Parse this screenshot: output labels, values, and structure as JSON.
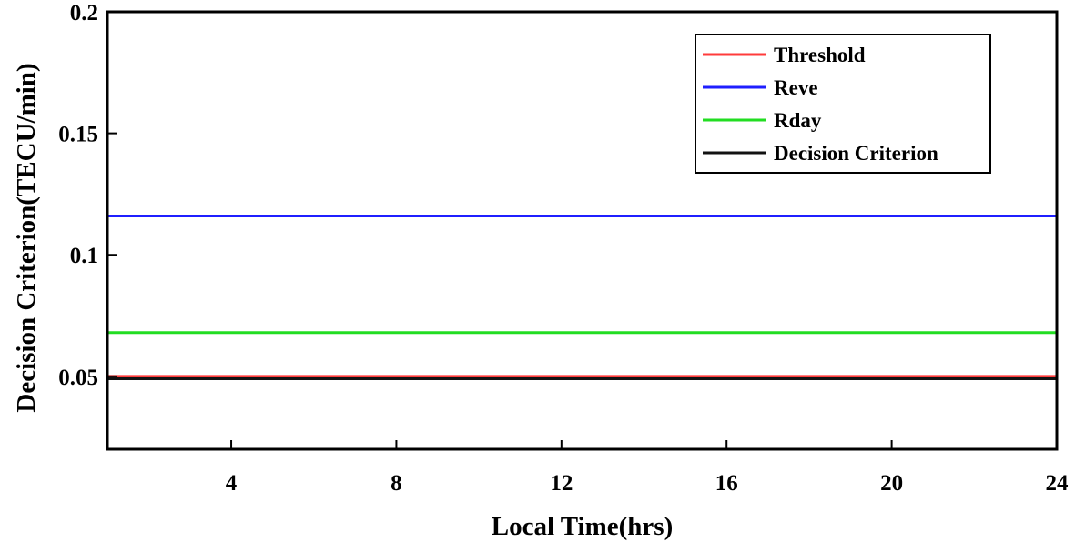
{
  "chart_data": {
    "type": "line",
    "xlabel": "Local Time(hrs)",
    "ylabel": "Decision Criterion(TECU/min)",
    "xlim": [
      1,
      24
    ],
    "ylim": [
      0.02,
      0.2
    ],
    "xticks": [
      4,
      8,
      12,
      16,
      20,
      24
    ],
    "xtick_labels": [
      "4",
      "8",
      "12",
      "16",
      "20",
      "24"
    ],
    "yticks": [
      0.05,
      0.1,
      0.15,
      0.2
    ],
    "ytick_labels": [
      "0.05",
      "0.1",
      "0.15",
      "0.2"
    ],
    "grid": false,
    "legend_position": "top-right",
    "series": [
      {
        "name": "Threshold",
        "color": "#ff3b3b",
        "x": [
          1,
          24
        ],
        "values": [
          0.05,
          0.05
        ]
      },
      {
        "name": "Reve",
        "color": "#1f1fff",
        "x": [
          1,
          24
        ],
        "values": [
          0.116,
          0.116
        ]
      },
      {
        "name": "Rday",
        "color": "#22dd22",
        "x": [
          1,
          24
        ],
        "values": [
          0.068,
          0.068
        ]
      },
      {
        "name": "Decision Criterion",
        "color": "#111111",
        "x": [
          1,
          24
        ],
        "values": [
          0.049,
          0.049
        ]
      }
    ]
  }
}
